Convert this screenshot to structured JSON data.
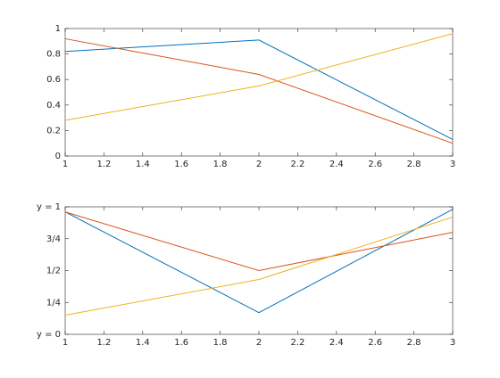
{
  "chart_data": [
    {
      "type": "line",
      "x": [
        1,
        2,
        3
      ],
      "xlim": [
        1,
        3
      ],
      "xticks": [
        1,
        1.2,
        1.4,
        1.6,
        1.8,
        2,
        2.2,
        2.4,
        2.6,
        2.8,
        3
      ],
      "ylim": [
        0,
        1
      ],
      "yticks": [
        0,
        0.2,
        0.4,
        0.6,
        0.8,
        1
      ],
      "series": [
        {
          "color": "#0072BD",
          "values": [
            0.82,
            0.91,
            0.13
          ]
        },
        {
          "color": "#D95319",
          "values": [
            0.92,
            0.64,
            0.1
          ]
        },
        {
          "color": "#EDB120",
          "values": [
            0.28,
            0.55,
            0.96
          ]
        }
      ]
    },
    {
      "type": "line",
      "x": [
        1,
        2,
        3
      ],
      "xlim": [
        1,
        3
      ],
      "xticks": [
        1,
        1.2,
        1.4,
        1.6,
        1.8,
        2,
        2.2,
        2.4,
        2.6,
        2.8,
        3
      ],
      "ylim": [
        0,
        1
      ],
      "yticks": [
        {
          "value": 0,
          "label": "y = 0"
        },
        {
          "value": 0.25,
          "label": "1/4"
        },
        {
          "value": 0.5,
          "label": "1/2"
        },
        {
          "value": 0.75,
          "label": "3/4"
        },
        {
          "value": 1,
          "label": "y = 1"
        }
      ],
      "series": [
        {
          "color": "#0072BD",
          "values": [
            0.96,
            0.17,
            0.98
          ]
        },
        {
          "color": "#D95319",
          "values": [
            0.96,
            0.5,
            0.8
          ]
        },
        {
          "color": "#EDB120",
          "values": [
            0.15,
            0.43,
            0.92
          ]
        }
      ]
    }
  ]
}
